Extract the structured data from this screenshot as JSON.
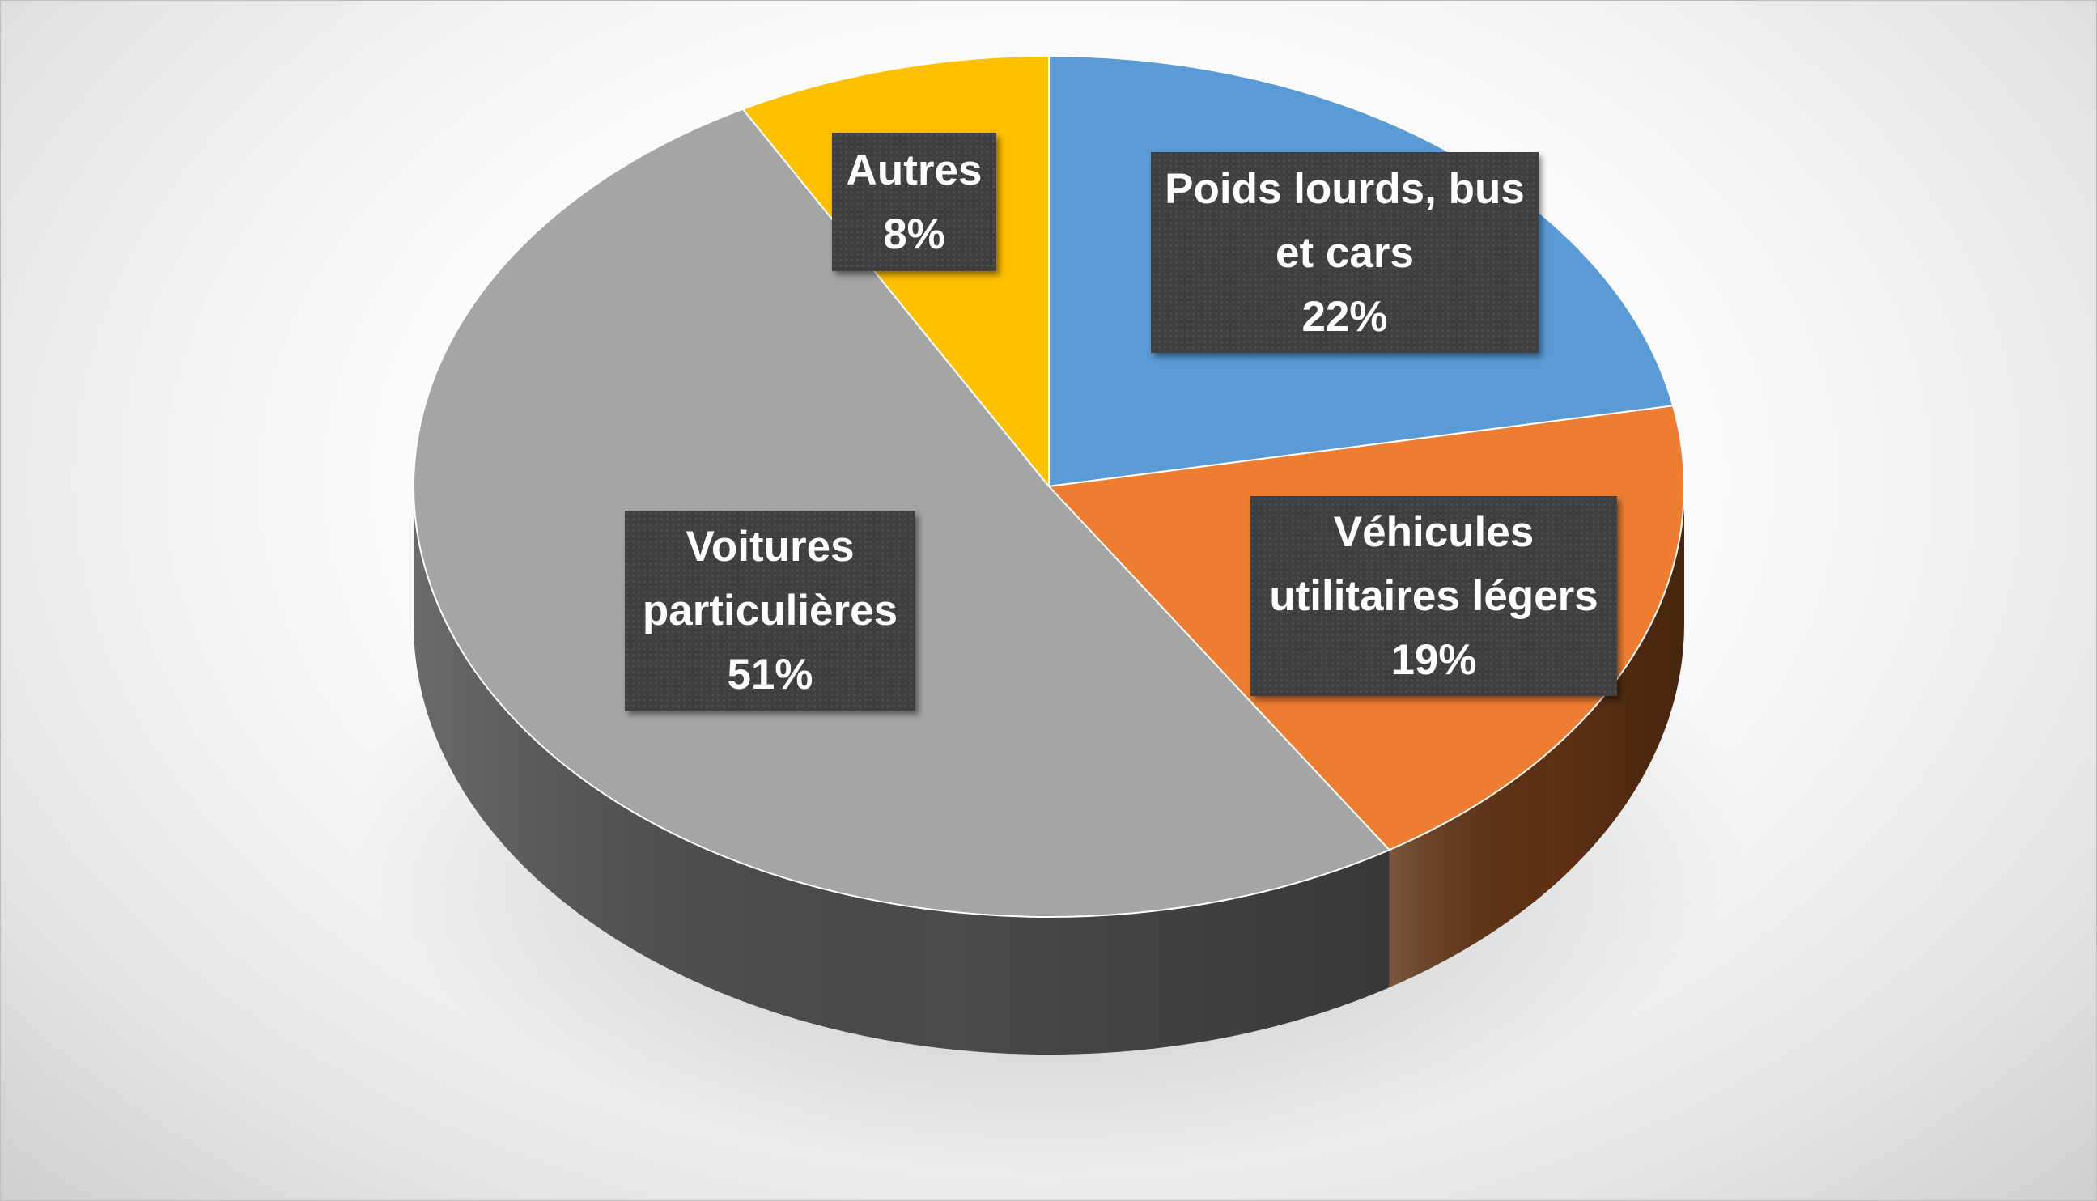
{
  "chart_data": {
    "type": "pie",
    "style": "3d",
    "title": "",
    "slices": [
      {
        "label_lines": [
          "Poids lourds, bus",
          "et cars"
        ],
        "value": 22,
        "value_text": "22%",
        "color": "#5b9bd5",
        "side_color": "#2e5f8f"
      },
      {
        "label_lines": [
          "Véhicules",
          "utilitaires légers"
        ],
        "value": 19,
        "value_text": "19%",
        "color": "#ed7d31",
        "side_color": "#5e3113"
      },
      {
        "label_lines": [
          "Voitures",
          "particulières"
        ],
        "value": 51,
        "value_text": "51%",
        "color": "#a5a5a5",
        "side_color": "#4a4a4a"
      },
      {
        "label_lines": [
          "Autres"
        ],
        "value": 8,
        "value_text": "8%",
        "color": "#ffc000",
        "side_color": "#8a6800"
      }
    ],
    "start_angle_deg": 0,
    "direction": "clockwise",
    "legend": "none",
    "data_labels": "inside, dark callout boxes"
  }
}
